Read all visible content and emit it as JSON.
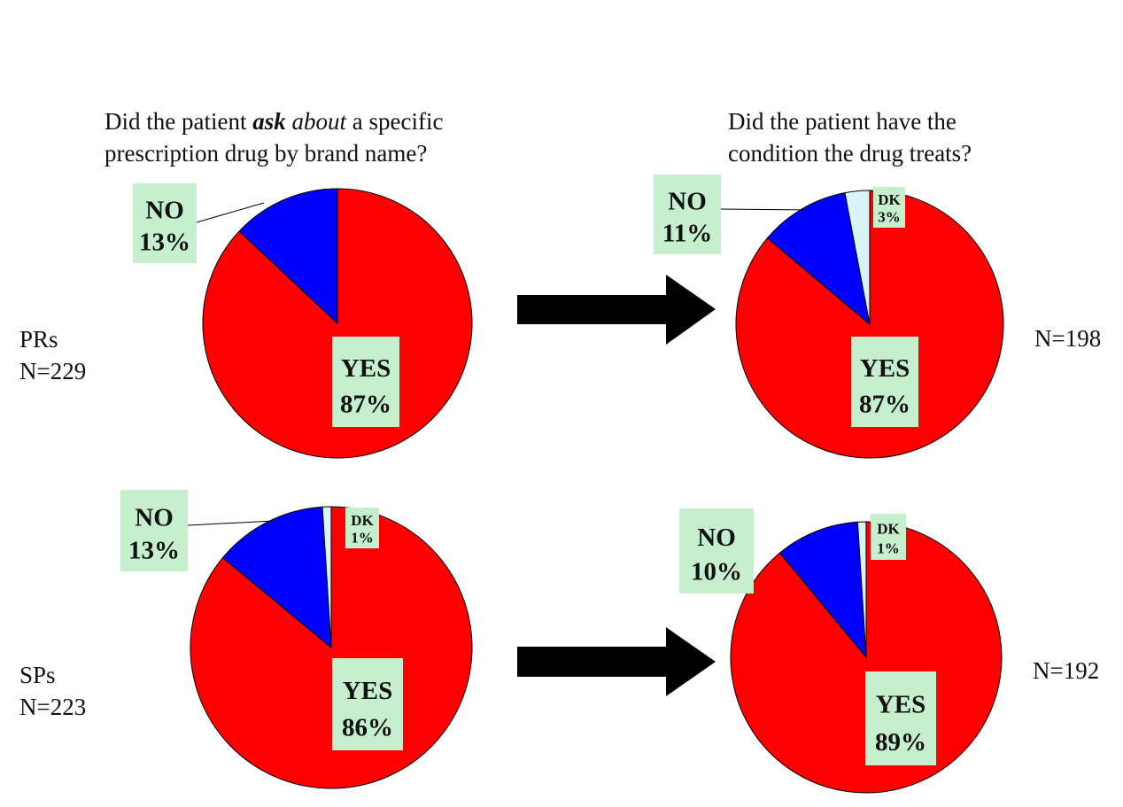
{
  "titles": {
    "left_line1_pre": "Did the patient ",
    "left_line1_em1": "ask",
    "left_line1_em2": "about",
    "left_line1_post": " a specific",
    "left_line2": "prescription drug by brand name?",
    "right_line1": "Did the patient have the",
    "right_line2": "condition the drug treats?"
  },
  "rows": {
    "top": {
      "group": "PRs",
      "n": "N=229",
      "n_right": "N=198"
    },
    "bottom": {
      "group": "SPs",
      "n": "N=223",
      "n_right": "N=192"
    }
  },
  "colors": {
    "yes": "#ff0000",
    "no": "#0000ff",
    "dk": "#d9f4f8",
    "label_bg": "#c6efce",
    "arrow": "#000000"
  },
  "chart_data": [
    {
      "type": "pie",
      "question": "Did the patient ask about a specific prescription drug by brand name?",
      "group": "PRs",
      "n": "N=229",
      "slices": [
        {
          "label": "YES",
          "value": 87,
          "text": "87%"
        },
        {
          "label": "NO",
          "value": 13,
          "text": "13%"
        }
      ]
    },
    {
      "type": "pie",
      "question": "Did the patient have the condition the drug treats?",
      "group": "PRs",
      "n": "N=198",
      "slices": [
        {
          "label": "YES",
          "value": 87,
          "text": "87%"
        },
        {
          "label": "NO",
          "value": 11,
          "text": "11%"
        },
        {
          "label": "DK",
          "value": 3,
          "text": "3%"
        }
      ]
    },
    {
      "type": "pie",
      "question": "Did the patient ask about a specific prescription drug by brand name?",
      "group": "SPs",
      "n": "N=223",
      "slices": [
        {
          "label": "YES",
          "value": 86,
          "text": "86%"
        },
        {
          "label": "NO",
          "value": 13,
          "text": "13%"
        },
        {
          "label": "DK",
          "value": 1,
          "text": "1%"
        }
      ]
    },
    {
      "type": "pie",
      "question": "Did the patient have the condition the drug treats?",
      "group": "SPs",
      "n": "N=192",
      "slices": [
        {
          "label": "YES",
          "value": 89,
          "text": "89%"
        },
        {
          "label": "NO",
          "value": 10,
          "text": "10%"
        },
        {
          "label": "DK",
          "value": 1,
          "text": "1%"
        }
      ]
    }
  ]
}
